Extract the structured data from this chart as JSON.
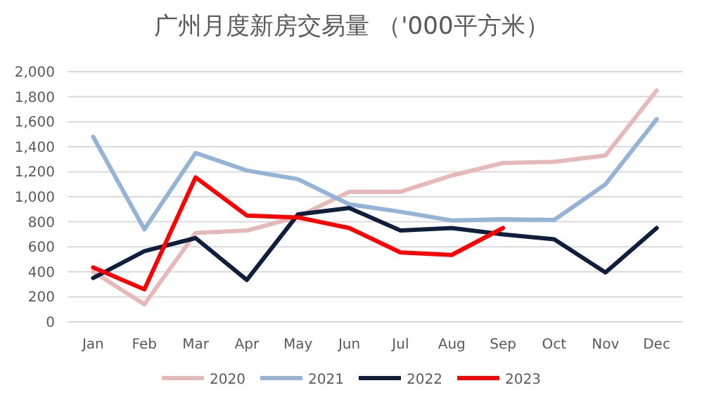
{
  "chart_data": {
    "type": "line",
    "title": "广州月度新房交易量 （'000平方米）",
    "categories": [
      "Jan",
      "Feb",
      "Mar",
      "Apr",
      "May",
      "Jun",
      "Jul",
      "Aug",
      "Sep",
      "Oct",
      "Nov",
      "Dec"
    ],
    "series": [
      {
        "name": "2020",
        "color": "#e6b8b7",
        "values": [
          400,
          140,
          710,
          730,
          840,
          1040,
          1040,
          1170,
          1270,
          1280,
          1330,
          1850
        ]
      },
      {
        "name": "2021",
        "color": "#95b3d7",
        "values": [
          1480,
          740,
          1350,
          1210,
          1140,
          940,
          880,
          810,
          820,
          815,
          1100,
          1620
        ]
      },
      {
        "name": "2022",
        "color": "#0f1e3c",
        "values": [
          350,
          565,
          670,
          335,
          860,
          910,
          730,
          750,
          700,
          660,
          395,
          750
        ]
      },
      {
        "name": "2023",
        "color": "#ff0000",
        "values": [
          435,
          260,
          1155,
          850,
          835,
          750,
          555,
          535,
          750,
          null,
          null,
          null
        ]
      }
    ],
    "ylim": [
      0,
      2000
    ],
    "yticks": [
      {
        "value": 0,
        "label": "0"
      },
      {
        "value": 200,
        "label": "200"
      },
      {
        "value": 400,
        "label": "400"
      },
      {
        "value": 600,
        "label": "600"
      },
      {
        "value": 800,
        "label": "800"
      },
      {
        "value": 1000,
        "label": "1,000"
      },
      {
        "value": 1200,
        "label": "1,200"
      },
      {
        "value": 1400,
        "label": "1,400"
      },
      {
        "value": 1600,
        "label": "1,600"
      },
      {
        "value": 1800,
        "label": "1,800"
      },
      {
        "value": 2000,
        "label": "2,000"
      }
    ],
    "grid": "y",
    "legend": "bottom",
    "marker": "none",
    "line_style": "solid"
  }
}
